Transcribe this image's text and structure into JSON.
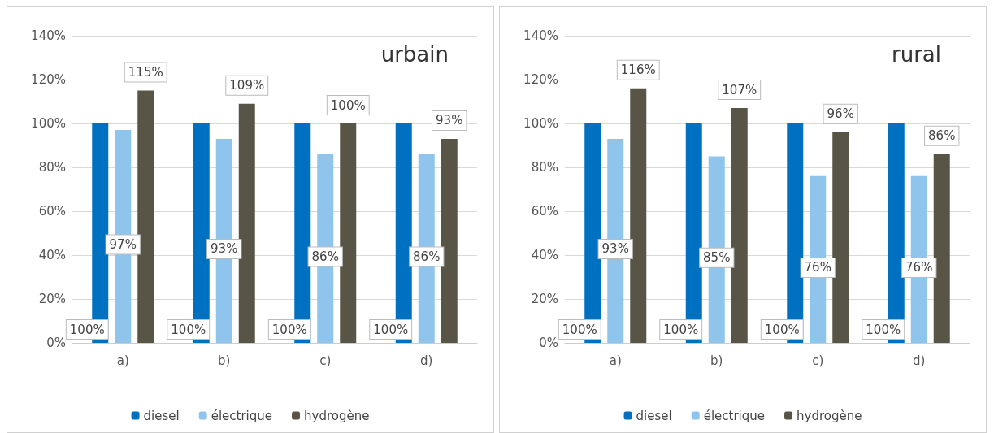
{
  "chart_data": [
    {
      "type": "bar",
      "title": "urbain",
      "categories": [
        "a)",
        "b)",
        "c)",
        "d)"
      ],
      "ylim": [
        0,
        140
      ],
      "yticks": [
        {
          "value": 0,
          "label": "0%"
        },
        {
          "value": 20,
          "label": "20%"
        },
        {
          "value": 40,
          "label": "40%"
        },
        {
          "value": 60,
          "label": "60%"
        },
        {
          "value": 80,
          "label": "80%"
        },
        {
          "value": 100,
          "label": "100%"
        },
        {
          "value": 120,
          "label": "120%"
        },
        {
          "value": 140,
          "label": "140%"
        }
      ],
      "grid": "y",
      "legend": "bottom",
      "series": [
        {
          "name": "diesel",
          "color": "#0070c0",
          "values": [
            100,
            100,
            100,
            100
          ],
          "value_labels": [
            "100%",
            "100%",
            "100%",
            "100%"
          ]
        },
        {
          "name": "électrique",
          "color": "#8fc4ec",
          "values": [
            97,
            93,
            86,
            86
          ],
          "value_labels": [
            "97%",
            "93%",
            "86%",
            "86%"
          ]
        },
        {
          "name": "hydrogène",
          "color": "#595546",
          "values": [
            115,
            109,
            100,
            93
          ],
          "value_labels": [
            "115%",
            "109%",
            "100%",
            "93%"
          ]
        }
      ]
    },
    {
      "type": "bar",
      "title": "rural",
      "categories": [
        "a)",
        "b)",
        "c)",
        "d)"
      ],
      "ylim": [
        0,
        140
      ],
      "yticks": [
        {
          "value": 0,
          "label": "0%"
        },
        {
          "value": 20,
          "label": "20%"
        },
        {
          "value": 40,
          "label": "40%"
        },
        {
          "value": 60,
          "label": "60%"
        },
        {
          "value": 80,
          "label": "80%"
        },
        {
          "value": 100,
          "label": "100%"
        },
        {
          "value": 120,
          "label": "120%"
        },
        {
          "value": 140,
          "label": "140%"
        }
      ],
      "grid": "y",
      "legend": "bottom",
      "series": [
        {
          "name": "diesel",
          "color": "#0070c0",
          "values": [
            100,
            100,
            100,
            100
          ],
          "value_labels": [
            "100%",
            "100%",
            "100%",
            "100%"
          ]
        },
        {
          "name": "électrique",
          "color": "#8fc4ec",
          "values": [
            93,
            85,
            76,
            76
          ],
          "value_labels": [
            "93%",
            "85%",
            "76%",
            "76%"
          ]
        },
        {
          "name": "hydrogène",
          "color": "#595546",
          "values": [
            116,
            107,
            96,
            86
          ],
          "value_labels": [
            "116%",
            "107%",
            "96%",
            "86%"
          ]
        }
      ]
    }
  ]
}
